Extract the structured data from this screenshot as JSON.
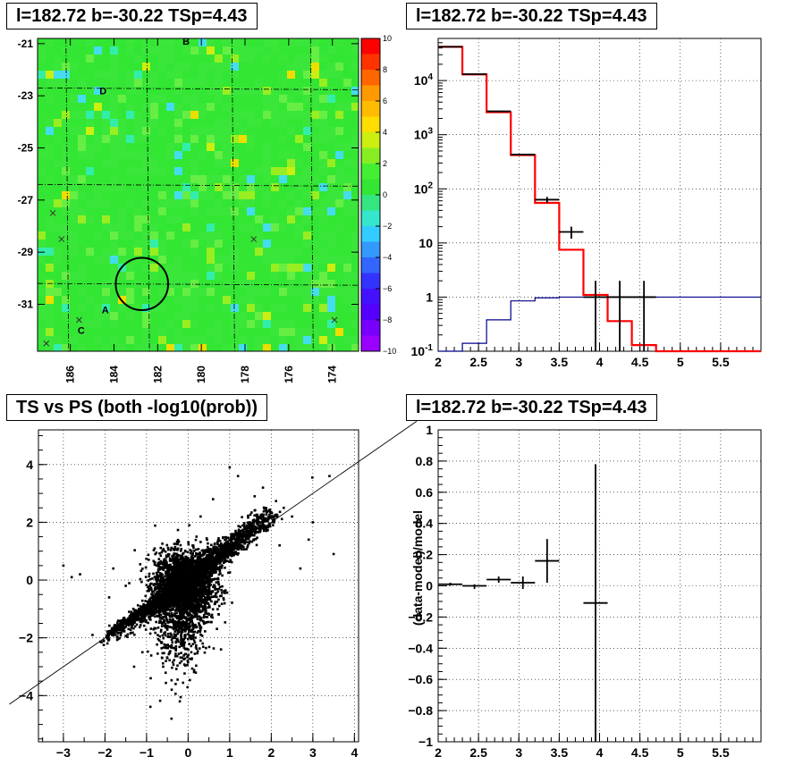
{
  "panels": {
    "skymap": {
      "title": "l=182.72 b=-30.22 TSp=4.43"
    },
    "spectrum": {
      "title": "l=182.72 b=-30.22 TSp=4.43"
    },
    "scatter": {
      "title": "TS vs PS (both -log10(prob))"
    },
    "residual": {
      "title": "l=182.72 b=-30.22 TSp=4.43"
    }
  },
  "colors": {
    "background": "#ffffff",
    "axis": "#000000",
    "grid": "#000000",
    "model_line": "#ff0000",
    "background_model_line": "#00008b",
    "heatmap_base": "#33e633"
  },
  "chart_data": [
    {
      "id": "skymap",
      "type": "heatmap",
      "title": "l=182.72 b=-30.22 TSp=4.43",
      "xlim": [
        187.5,
        172.8
      ],
      "ylim": [
        -32.8,
        -20.8
      ],
      "x_ticks": [
        "186",
        "184",
        "182",
        "180",
        "178",
        "176",
        "174"
      ],
      "x_tick_values": [
        186,
        184,
        182,
        180,
        178,
        176,
        174
      ],
      "y_ticks": [
        "-21",
        "-23",
        "-25",
        "-27",
        "-29",
        "-31"
      ],
      "y_tick_values": [
        -21,
        -23,
        -25,
        -27,
        -29,
        -31
      ],
      "colorbar": {
        "range": [
          -10,
          10
        ],
        "ticks": [
          "10",
          "8",
          "6",
          "4",
          "2",
          "0",
          "−2",
          "−4",
          "−6",
          "−8",
          "−10"
        ],
        "tick_values": [
          10,
          8,
          6,
          4,
          2,
          0,
          -2,
          -4,
          -6,
          -8,
          -10
        ]
      },
      "labels": [
        {
          "text": "B",
          "l": 180.7,
          "b": -20.9
        },
        {
          "text": "D",
          "l": 184.5,
          "b": -22.8
        },
        {
          "text": "A",
          "l": 184.4,
          "b": -31.2
        },
        {
          "text": "C",
          "l": 185.5,
          "b": -32.0
        }
      ],
      "crosses": [
        {
          "l": 186.8,
          "b": -27.5
        },
        {
          "l": 186.4,
          "b": -28.5
        },
        {
          "l": 185.6,
          "b": -31.6
        },
        {
          "l": 177.6,
          "b": -28.5
        },
        {
          "l": 173.9,
          "b": -31.6
        },
        {
          "l": 187.1,
          "b": -32.5
        }
      ],
      "circle": {
        "l": 182.72,
        "b": -30.22,
        "r": 0.6
      }
    },
    {
      "id": "spectrum",
      "type": "line",
      "title": "l=182.72 b=-30.22 TSp=4.43",
      "log_y": true,
      "xlim": [
        2,
        6
      ],
      "ylim": [
        0.1,
        60000
      ],
      "x_ticks": [
        "2",
        "2.5",
        "3",
        "3.5",
        "4",
        "4.5",
        "5",
        "5.5"
      ],
      "x_tick_values": [
        2,
        2.5,
        3,
        3.5,
        4,
        4.5,
        5,
        5.5
      ],
      "y_ticks": [
        "10^-1",
        "1",
        "10",
        "10^2",
        "10^3",
        "10^4"
      ],
      "y_tick_values": [
        0.1,
        1,
        10,
        100,
        1000,
        10000
      ],
      "bin_edges": [
        2.0,
        2.3,
        2.6,
        2.9,
        3.2,
        3.5,
        3.8,
        4.1,
        4.4,
        4.7,
        5.0,
        6.0
      ],
      "series": [
        {
          "role": "model",
          "color": "#ff0000",
          "values": [
            42000,
            13000,
            2600,
            420,
            55,
            7.5,
            1.1,
            0.36,
            0.13,
            0.1,
            0.1
          ]
        },
        {
          "role": "background",
          "color": "#00008b",
          "values": [
            0.1,
            0.14,
            0.38,
            0.85,
            0.97,
            1.0,
            1.0,
            1.0,
            1.0,
            1.0,
            1.0
          ]
        }
      ],
      "data_points": [
        {
          "x": 2.15,
          "xerr": 0.15,
          "y": 42000,
          "ylo": 41800,
          "yhi": 42200
        },
        {
          "x": 2.45,
          "xerr": 0.15,
          "y": 13100,
          "ylo": 13000,
          "yhi": 13200
        },
        {
          "x": 2.75,
          "xerr": 0.15,
          "y": 2700,
          "ylo": 2650,
          "yhi": 2750
        },
        {
          "x": 3.05,
          "xerr": 0.15,
          "y": 430,
          "ylo": 415,
          "yhi": 445
        },
        {
          "x": 3.35,
          "xerr": 0.15,
          "y": 63,
          "ylo": 55,
          "yhi": 71
        },
        {
          "x": 3.65,
          "xerr": 0.15,
          "y": 16,
          "ylo": 12,
          "yhi": 20
        },
        {
          "x": 3.95,
          "xerr": 0.15,
          "y": 1,
          "ylo": 0.1,
          "yhi": 2
        },
        {
          "x": 4.25,
          "xerr": 0.15,
          "y": 1,
          "ylo": 0.1,
          "yhi": 2
        },
        {
          "x": 4.55,
          "xerr": 0.15,
          "y": 1,
          "ylo": 0.1,
          "yhi": 2
        }
      ]
    },
    {
      "id": "scatter",
      "type": "scatter",
      "title": "TS vs PS (both -log10(prob))",
      "xlim": [
        -3.6,
        4.1
      ],
      "ylim": [
        -5.6,
        5.2
      ],
      "x_ticks": [
        "−3",
        "−2",
        "−1",
        "0",
        "1",
        "2",
        "3",
        "4"
      ],
      "x_tick_values": [
        -3,
        -2,
        -1,
        0,
        1,
        2,
        3,
        4
      ],
      "y_ticks": [
        "−4",
        "−2",
        "0",
        "2",
        "4"
      ],
      "y_tick_values": [
        -4,
        -2,
        0,
        2,
        4
      ],
      "reference_line": {
        "slope": 1,
        "intercept": 0
      },
      "outliers": [
        [
          -2.6,
          0.2
        ],
        [
          -2.3,
          -1.9
        ],
        [
          -1.8,
          0.4
        ],
        [
          -1.5,
          -0.2
        ],
        [
          -1.3,
          -3.0
        ],
        [
          -0.9,
          -3.4
        ],
        [
          -0.6,
          -3.0
        ],
        [
          -0.4,
          -4.8
        ],
        [
          -0.2,
          -4.2
        ],
        [
          -0.5,
          -2.7
        ],
        [
          -0.3,
          -3.6
        ],
        [
          -1.1,
          -2.5
        ],
        [
          -1.6,
          -1.4
        ],
        [
          -1.9,
          -0.6
        ],
        [
          1.0,
          3.9
        ],
        [
          1.2,
          3.6
        ],
        [
          1.8,
          3.2
        ],
        [
          2.3,
          2.5
        ],
        [
          2.5,
          2.2
        ],
        [
          3.0,
          2.0
        ],
        [
          3.4,
          3.6
        ],
        [
          3.5,
          0.9
        ],
        [
          2.9,
          1.4
        ],
        [
          2.2,
          1.2
        ],
        [
          0.6,
          2.8
        ],
        [
          0.3,
          2.2
        ],
        [
          1.6,
          2.9
        ],
        [
          2.7,
          0.4
        ],
        [
          -3.0,
          0.5
        ],
        [
          -2.8,
          0.1
        ]
      ]
    },
    {
      "id": "residual",
      "type": "scatter",
      "title": "l=182.72 b=-30.22 TSp=4.43",
      "ylabel": "(data-model)/model",
      "xlim": [
        2,
        6
      ],
      "ylim": [
        -1,
        1
      ],
      "x_ticks": [
        "2",
        "2.5",
        "3",
        "3.5",
        "4",
        "4.5",
        "5",
        "5.5"
      ],
      "x_tick_values": [
        2,
        2.5,
        3,
        3.5,
        4,
        4.5,
        5,
        5.5
      ],
      "y_ticks": [
        "−1",
        "−0.8",
        "−0.6",
        "−0.4",
        "−0.2",
        "0",
        "0.2",
        "0.4",
        "0.6",
        "0.8",
        "1"
      ],
      "y_tick_values": [
        -1,
        -0.8,
        -0.6,
        -0.4,
        -0.2,
        0,
        0.2,
        0.4,
        0.6,
        0.8,
        1
      ],
      "data_points": [
        {
          "x": 2.15,
          "xerr": 0.15,
          "y": 0.01,
          "ylo": 0.0,
          "yhi": 0.02
        },
        {
          "x": 2.45,
          "xerr": 0.15,
          "y": 0.0,
          "ylo": -0.02,
          "yhi": 0.01
        },
        {
          "x": 2.75,
          "xerr": 0.15,
          "y": 0.04,
          "ylo": 0.02,
          "yhi": 0.06
        },
        {
          "x": 3.05,
          "xerr": 0.15,
          "y": 0.02,
          "ylo": -0.02,
          "yhi": 0.06
        },
        {
          "x": 3.35,
          "xerr": 0.15,
          "y": 0.16,
          "ylo": 0.02,
          "yhi": 0.3
        },
        {
          "x": 3.95,
          "xerr": 0.15,
          "y": -0.11,
          "ylo": -1.0,
          "yhi": 0.78
        }
      ]
    }
  ]
}
